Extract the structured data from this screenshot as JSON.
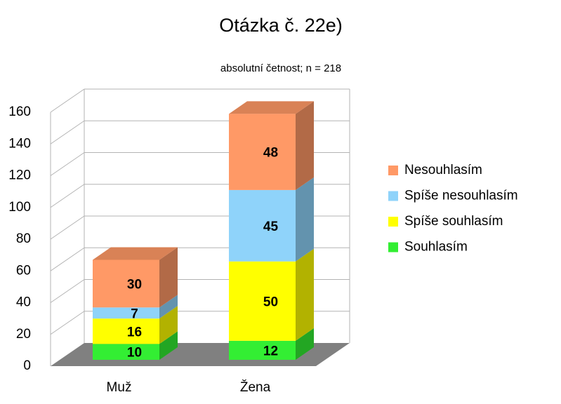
{
  "chart_data": {
    "type": "bar3d_stacked",
    "title": "Otázka č. 22e)",
    "subtitle": "absolutní četnost; n = 218",
    "categories": [
      "Muž",
      "Žena"
    ],
    "series": [
      {
        "name": "Souhlasím",
        "color": "#33ee33",
        "values": [
          10,
          12
        ]
      },
      {
        "name": "Spíše souhlasím",
        "color": "#ffff00",
        "values": [
          16,
          50
        ]
      },
      {
        "name": "Spíše nesouhlasím",
        "color": "#8fd3fa",
        "values": [
          7,
          45
        ]
      },
      {
        "name": "Nesouhlasím",
        "color": "#ff9966",
        "values": [
          30,
          48
        ]
      }
    ],
    "ylim": [
      0,
      160
    ],
    "yticks": [
      0,
      20,
      40,
      60,
      80,
      100,
      120,
      140,
      160
    ],
    "grid": true,
    "legend": "right"
  }
}
